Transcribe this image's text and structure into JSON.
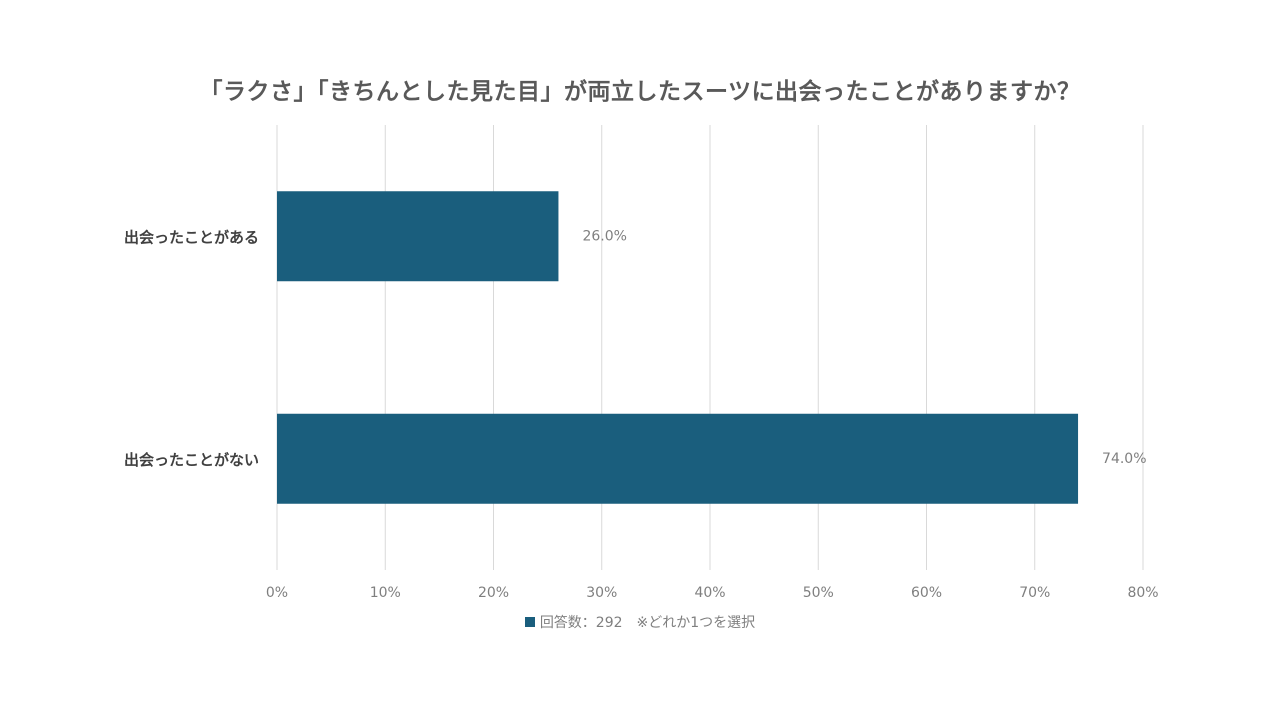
{
  "chart_data": {
    "type": "bar",
    "orientation": "horizontal",
    "title": "「ラクさ」「きちんとした見た目」が両立したスーツに出会ったことがありますか？",
    "categories": [
      "出会ったことがある",
      "出会ったことがない"
    ],
    "series": [
      {
        "name": "回答数：292　※どれか1つを選択",
        "values": [
          26.0,
          74.0
        ],
        "data_labels": [
          "26.0%",
          "74.0%"
        ]
      }
    ],
    "xlim": [
      0,
      80
    ],
    "x_ticks": [
      "0%",
      "10%",
      "20%",
      "30%",
      "40%",
      "50%",
      "60%",
      "70%",
      "80%"
    ],
    "grid": "vertical",
    "legend": "bottom-center",
    "bar_color": "#1a5e7d"
  }
}
